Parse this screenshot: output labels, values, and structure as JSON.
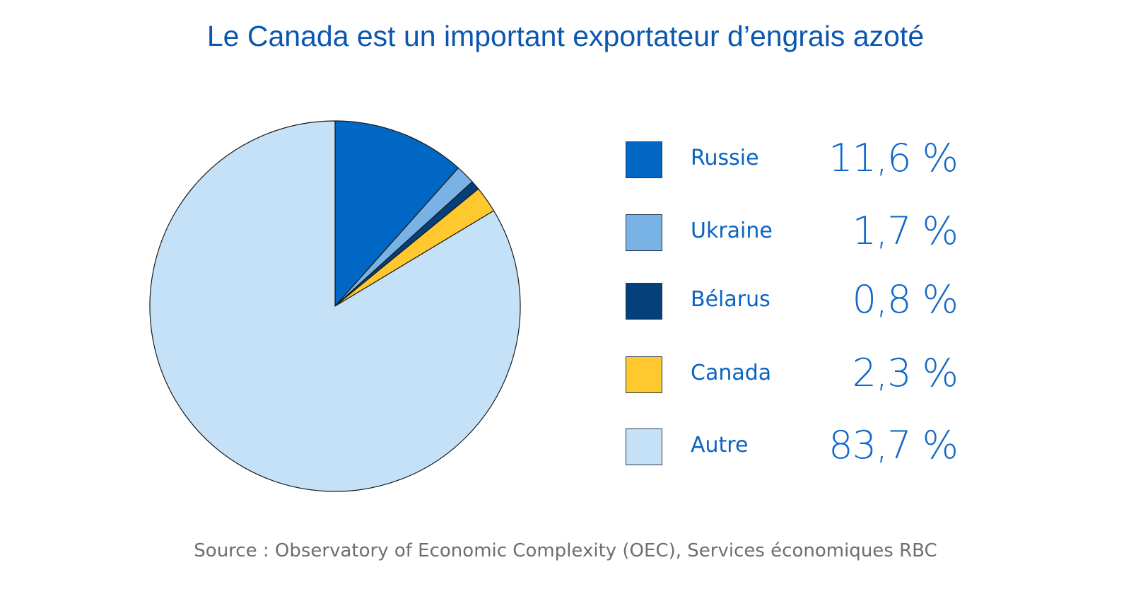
{
  "chart_data": {
    "type": "pie",
    "title": "Le Canada est un important exportateur d’engrais azoté",
    "slices": [
      {
        "label": "Russie",
        "value": 11.6,
        "display": "11,6 %",
        "color": "#0067c5"
      },
      {
        "label": "Ukraine",
        "value": 1.7,
        "display": "1,7 %",
        "color": "#79b3e6"
      },
      {
        "label": "Bélarus",
        "value": 0.8,
        "display": "0,8 %",
        "color": "#053f7c"
      },
      {
        "label": "Canada",
        "value": 2.3,
        "display": "2,3 %",
        "color": "#fec82e"
      },
      {
        "label": "Autre",
        "value": 83.7,
        "display": "83,7 %",
        "color": "#c5e1f7"
      }
    ],
    "legend_position": "right",
    "source": "Source : Observatory of Economic Complexity (OEC), Services économiques RBC"
  }
}
